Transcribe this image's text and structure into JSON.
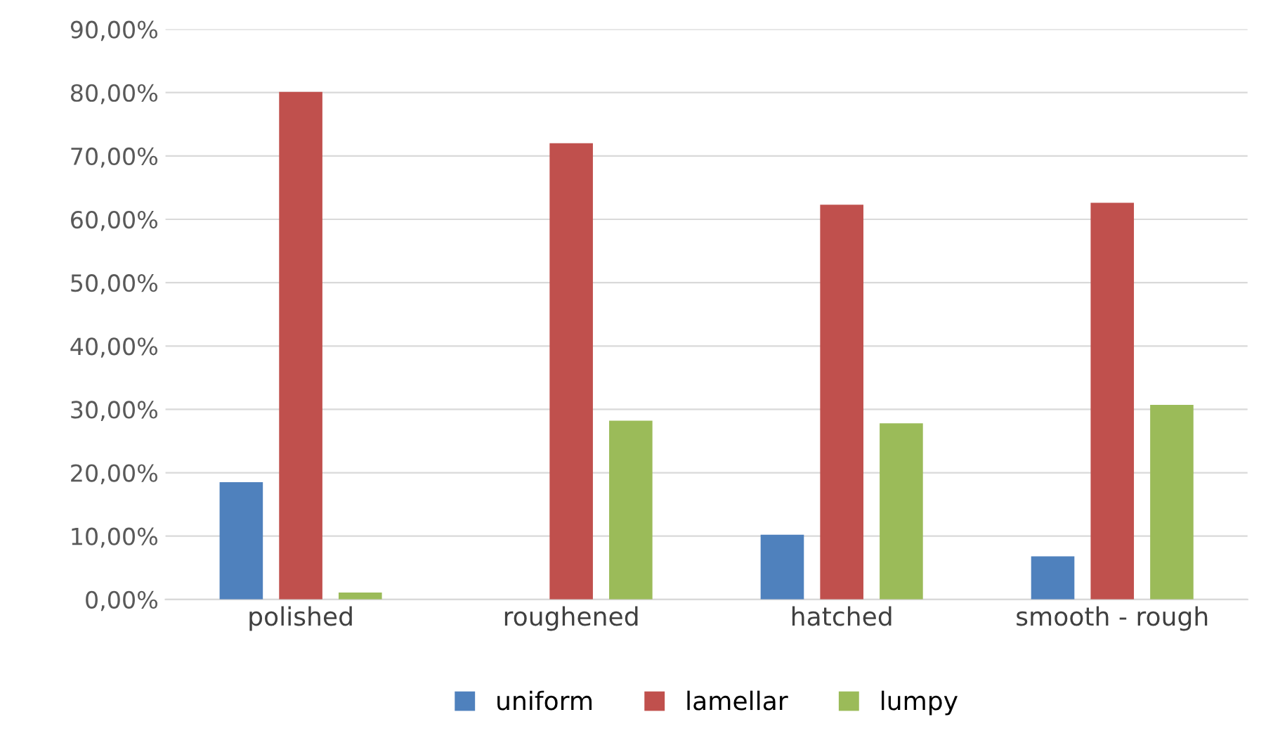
{
  "chart_data": {
    "type": "bar",
    "categories": [
      "polished",
      "roughened",
      "hatched",
      "smooth - rough"
    ],
    "series": [
      {
        "name": "uniform",
        "color": "#4f81bd",
        "values": [
          18.5,
          0,
          10.2,
          6.8
        ]
      },
      {
        "name": "lamellar",
        "color": "#c0504d",
        "values": [
          80.1,
          72.0,
          62.3,
          62.6
        ]
      },
      {
        "name": "lumpy",
        "color": "#9bbb59",
        "values": [
          1.1,
          28.2,
          27.8,
          30.7
        ]
      }
    ],
    "ylim": [
      0,
      90
    ],
    "yticks": [
      {
        "value": 0,
        "label": "0,00%"
      },
      {
        "value": 10,
        "label": "10,00%"
      },
      {
        "value": 20,
        "label": "20,00%"
      },
      {
        "value": 30,
        "label": "30,00%"
      },
      {
        "value": 40,
        "label": "40,00%"
      },
      {
        "value": 50,
        "label": "50,00%"
      },
      {
        "value": 60,
        "label": "60,00%"
      },
      {
        "value": 70,
        "label": "70,00%"
      },
      {
        "value": 80,
        "label": "80,00%"
      },
      {
        "value": 90,
        "label": "90,00%"
      }
    ],
    "grid": "y",
    "legend": "bottom"
  }
}
